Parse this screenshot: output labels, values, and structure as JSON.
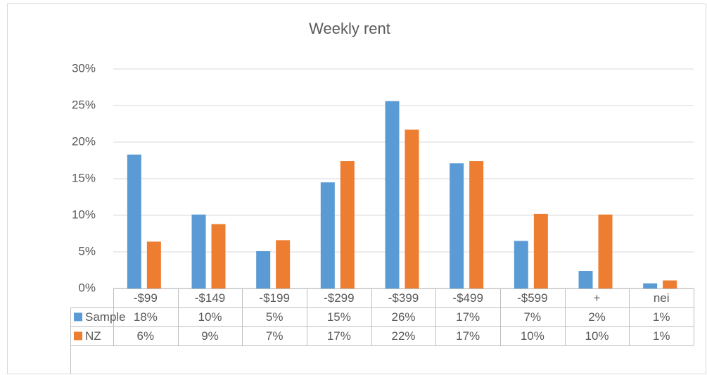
{
  "chart_data": {
    "type": "bar",
    "title": "Weekly rent",
    "categories": [
      "-$99",
      "-$149",
      "-$199",
      "-$299",
      "-$399",
      "-$499",
      "-$599",
      "+",
      "nei"
    ],
    "series": [
      {
        "name": "Sample",
        "color": "#5b9bd5",
        "values": [
          18.3,
          10.1,
          5.1,
          14.5,
          25.6,
          17.1,
          6.5,
          2.4,
          0.7
        ],
        "value_labels": [
          "18%",
          "10%",
          "5%",
          "15%",
          "26%",
          "17%",
          "7%",
          "2%",
          "1%"
        ]
      },
      {
        "name": "NZ",
        "color": "#ed7d31",
        "values": [
          6.4,
          8.8,
          6.6,
          17.4,
          21.7,
          17.4,
          10.2,
          10.1,
          1.1
        ],
        "value_labels": [
          "6%",
          "9%",
          "7%",
          "17%",
          "22%",
          "17%",
          "10%",
          "10%",
          "1%"
        ]
      }
    ],
    "ylim": [
      0,
      30
    ],
    "yticks": [
      {
        "value": 0,
        "label": "0%"
      },
      {
        "value": 5,
        "label": "5%"
      },
      {
        "value": 10,
        "label": "10%"
      },
      {
        "value": 15,
        "label": "15%"
      },
      {
        "value": 20,
        "label": "20%"
      },
      {
        "value": 25,
        "label": "25%"
      },
      {
        "value": 30,
        "label": "30%"
      }
    ],
    "grid": true
  }
}
